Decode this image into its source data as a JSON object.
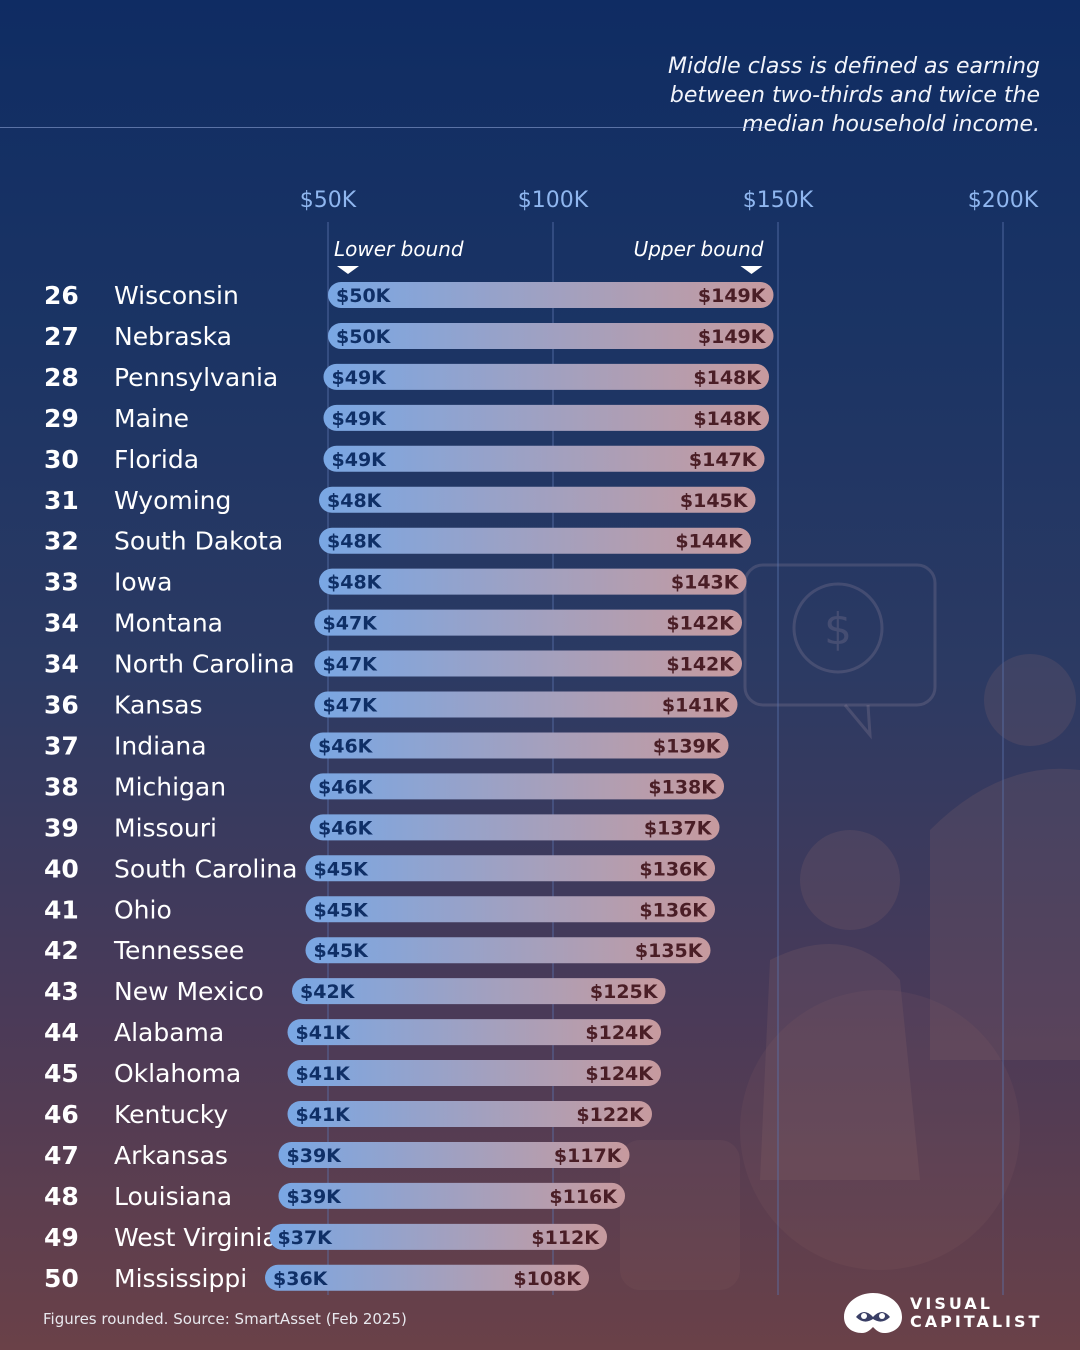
{
  "note": "Middle class is defined as earning between two-thirds and twice the median household income.",
  "footer": "Figures rounded. Source: SmartAsset (Feb 2025)",
  "brand": {
    "line1": "VISUAL",
    "line2": "CAPITALIST"
  },
  "colors": {
    "bar_start": "#79a7e4",
    "bar_end": "#c79a9e",
    "low_label": "#0f2f66",
    "high_label": "#4a1e26",
    "axis_text": "#8fb6ef",
    "gridline": "#5a73ad"
  },
  "chart_data": {
    "type": "bar",
    "subtype": "range",
    "x_ticks": [
      "$50K",
      "$100K",
      "$150K",
      "$200K"
    ],
    "x_tick_values": [
      50,
      100,
      150,
      200
    ],
    "xlim": [
      0,
      210
    ],
    "unit": "thousand USD",
    "lower_label": "Lower bound",
    "upper_label": "Upper bound",
    "rows": [
      {
        "rank": "26",
        "state": "Wisconsin",
        "low": 50,
        "high": 149,
        "low_label": "$50K",
        "high_label": "$149K"
      },
      {
        "rank": "27",
        "state": "Nebraska",
        "low": 50,
        "high": 149,
        "low_label": "$50K",
        "high_label": "$149K"
      },
      {
        "rank": "28",
        "state": "Pennsylvania",
        "low": 49,
        "high": 148,
        "low_label": "$49K",
        "high_label": "$148K"
      },
      {
        "rank": "29",
        "state": "Maine",
        "low": 49,
        "high": 148,
        "low_label": "$49K",
        "high_label": "$148K"
      },
      {
        "rank": "30",
        "state": "Florida",
        "low": 49,
        "high": 147,
        "low_label": "$49K",
        "high_label": "$147K"
      },
      {
        "rank": "31",
        "state": "Wyoming",
        "low": 48,
        "high": 145,
        "low_label": "$48K",
        "high_label": "$145K"
      },
      {
        "rank": "32",
        "state": "South Dakota",
        "low": 48,
        "high": 144,
        "low_label": "$48K",
        "high_label": "$144K"
      },
      {
        "rank": "33",
        "state": "Iowa",
        "low": 48,
        "high": 143,
        "low_label": "$48K",
        "high_label": "$143K"
      },
      {
        "rank": "34",
        "state": "Montana",
        "low": 47,
        "high": 142,
        "low_label": "$47K",
        "high_label": "$142K"
      },
      {
        "rank": "34",
        "state": "North Carolina",
        "low": 47,
        "high": 142,
        "low_label": "$47K",
        "high_label": "$142K"
      },
      {
        "rank": "36",
        "state": "Kansas",
        "low": 47,
        "high": 141,
        "low_label": "$47K",
        "high_label": "$141K"
      },
      {
        "rank": "37",
        "state": "Indiana",
        "low": 46,
        "high": 139,
        "low_label": "$46K",
        "high_label": "$139K"
      },
      {
        "rank": "38",
        "state": "Michigan",
        "low": 46,
        "high": 138,
        "low_label": "$46K",
        "high_label": "$138K"
      },
      {
        "rank": "39",
        "state": "Missouri",
        "low": 46,
        "high": 137,
        "low_label": "$46K",
        "high_label": "$137K"
      },
      {
        "rank": "40",
        "state": "South Carolina",
        "low": 45,
        "high": 136,
        "low_label": "$45K",
        "high_label": "$136K"
      },
      {
        "rank": "41",
        "state": "Ohio",
        "low": 45,
        "high": 136,
        "low_label": "$45K",
        "high_label": "$136K"
      },
      {
        "rank": "42",
        "state": "Tennessee",
        "low": 45,
        "high": 135,
        "low_label": "$45K",
        "high_label": "$135K"
      },
      {
        "rank": "43",
        "state": "New Mexico",
        "low": 42,
        "high": 125,
        "low_label": "$42K",
        "high_label": "$125K"
      },
      {
        "rank": "44",
        "state": "Alabama",
        "low": 41,
        "high": 124,
        "low_label": "$41K",
        "high_label": "$124K"
      },
      {
        "rank": "45",
        "state": "Oklahoma",
        "low": 41,
        "high": 124,
        "low_label": "$41K",
        "high_label": "$124K"
      },
      {
        "rank": "46",
        "state": "Kentucky",
        "low": 41,
        "high": 122,
        "low_label": "$41K",
        "high_label": "$122K"
      },
      {
        "rank": "47",
        "state": "Arkansas",
        "low": 39,
        "high": 117,
        "low_label": "$39K",
        "high_label": "$117K"
      },
      {
        "rank": "48",
        "state": "Louisiana",
        "low": 39,
        "high": 116,
        "low_label": "$39K",
        "high_label": "$116K"
      },
      {
        "rank": "49",
        "state": "West Virginia",
        "low": 37,
        "high": 112,
        "low_label": "$37K",
        "high_label": "$112K"
      },
      {
        "rank": "50",
        "state": "Mississippi",
        "low": 36,
        "high": 108,
        "low_label": "$36K",
        "high_label": "$108K"
      }
    ]
  }
}
